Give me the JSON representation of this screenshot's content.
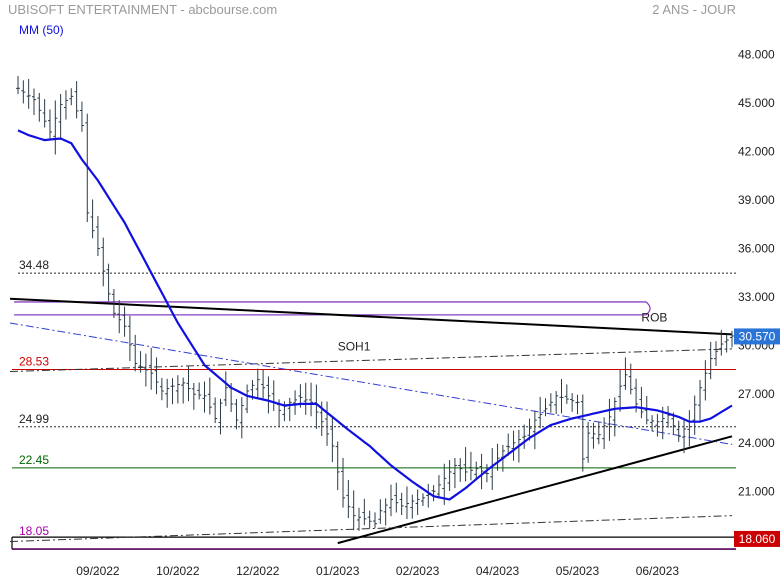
{
  "header": {
    "title": "UBISOFT ENTERTAINMENT - abcbourse.com",
    "period": "2 ANS - JOUR",
    "indicator": "MM (50)"
  },
  "colors": {
    "price_bars": "#2a3b48",
    "ma": "#1010e0",
    "resistance": "#000000",
    "level_red": "#d00000",
    "level_green": "#006600",
    "level_magenta": "#aa00aa",
    "rob": "#8a40c0",
    "trend_dashed": "#3040d0",
    "last_price_bg": "#2a74d8",
    "low_price_bg": "#cc0000"
  },
  "chart_data": {
    "type": "ohlc",
    "ylim": [
      17.5,
      49.5
    ],
    "y_ticks": [
      "48.000",
      "45.000",
      "42.000",
      "39.000",
      "36.000",
      "33.000",
      "30.000",
      "27.000",
      "24.000",
      "21.000"
    ],
    "y_tick_values": [
      48,
      45,
      42,
      39,
      36,
      33,
      30,
      27,
      24,
      21
    ],
    "x_ticks": [
      "09/2022",
      "10/2022",
      "12/2022",
      "01/2023",
      "02/2023",
      "04/2023",
      "05/2023",
      "06/2023"
    ],
    "x_tick_index": [
      15,
      30,
      45,
      60,
      75,
      90,
      105,
      120
    ],
    "n_bars": 135,
    "close_anchors": [
      [
        0,
        45.9
      ],
      [
        3,
        45.2
      ],
      [
        6,
        43.2
      ],
      [
        8,
        44.9
      ],
      [
        10,
        45.4
      ],
      [
        12,
        43.6
      ],
      [
        13,
        38.2
      ],
      [
        15,
        36.0
      ],
      [
        17,
        33.2
      ],
      [
        18,
        32.0
      ],
      [
        20,
        31.2
      ],
      [
        22,
        28.9
      ],
      [
        25,
        28.3
      ],
      [
        27,
        27.2
      ],
      [
        29,
        27.5
      ],
      [
        31,
        27.7
      ],
      [
        33,
        27.0
      ],
      [
        35,
        26.9
      ],
      [
        37,
        25.5
      ],
      [
        39,
        27.4
      ],
      [
        41,
        25.4
      ],
      [
        43,
        27.2
      ],
      [
        45,
        27.9
      ],
      [
        47,
        26.9
      ],
      [
        49,
        26.0
      ],
      [
        51,
        26.5
      ],
      [
        53,
        26.8
      ],
      [
        55,
        26.5
      ],
      [
        57,
        25.3
      ],
      [
        59,
        23.8
      ],
      [
        61,
        20.6
      ],
      [
        63,
        19.5
      ],
      [
        65,
        19.3
      ],
      [
        67,
        19.0
      ],
      [
        68,
        19.8
      ],
      [
        70,
        20.5
      ],
      [
        72,
        20.1
      ],
      [
        74,
        20.4
      ],
      [
        76,
        20.6
      ],
      [
        78,
        21.0
      ],
      [
        80,
        21.8
      ],
      [
        82,
        22.6
      ],
      [
        84,
        22.2
      ],
      [
        86,
        22.4
      ],
      [
        88,
        22.1
      ],
      [
        89,
        22.6
      ],
      [
        91,
        23.5
      ],
      [
        93,
        24.0
      ],
      [
        95,
        24.4
      ],
      [
        97,
        25.4
      ],
      [
        99,
        26.1
      ],
      [
        101,
        26.9
      ],
      [
        103,
        26.7
      ],
      [
        105,
        26.5
      ],
      [
        106,
        23.0
      ],
      [
        107,
        24.6
      ],
      [
        109,
        24.5
      ],
      [
        111,
        25.6
      ],
      [
        113,
        27.5
      ],
      [
        114,
        28.2
      ],
      [
        116,
        26.4
      ],
      [
        118,
        25.4
      ],
      [
        120,
        25.3
      ],
      [
        122,
        25.7
      ],
      [
        124,
        24.4
      ],
      [
        126,
        25.3
      ],
      [
        128,
        27.4
      ],
      [
        130,
        29.2
      ],
      [
        132,
        30.1
      ],
      [
        134,
        30.6
      ]
    ],
    "ma50_anchors": [
      [
        0,
        43.3
      ],
      [
        2,
        43.0
      ],
      [
        5,
        42.7
      ],
      [
        8,
        42.8
      ],
      [
        10,
        42.5
      ],
      [
        12,
        41.5
      ],
      [
        15,
        40.2
      ],
      [
        20,
        37.6
      ],
      [
        25,
        34.5
      ],
      [
        30,
        31.4
      ],
      [
        35,
        28.8
      ],
      [
        40,
        27.4
      ],
      [
        43,
        26.9
      ],
      [
        47,
        26.6
      ],
      [
        50,
        26.3
      ],
      [
        53,
        26.4
      ],
      [
        56,
        26.4
      ],
      [
        59,
        25.6
      ],
      [
        62,
        24.8
      ],
      [
        66,
        23.8
      ],
      [
        70,
        22.6
      ],
      [
        74,
        21.6
      ],
      [
        78,
        20.7
      ],
      [
        81,
        20.5
      ],
      [
        84,
        21.2
      ],
      [
        88,
        22.3
      ],
      [
        92,
        23.3
      ],
      [
        96,
        24.3
      ],
      [
        100,
        25.1
      ],
      [
        104,
        25.5
      ],
      [
        108,
        25.8
      ],
      [
        112,
        26.1
      ],
      [
        116,
        26.2
      ],
      [
        120,
        26.0
      ],
      [
        124,
        25.6
      ],
      [
        126,
        25.3
      ],
      [
        128,
        25.3
      ],
      [
        130,
        25.5
      ],
      [
        132,
        25.9
      ],
      [
        134,
        26.3
      ]
    ],
    "levels": [
      {
        "label": "34.48",
        "value": 34.48,
        "style": "dotted",
        "color": "#222222"
      },
      {
        "label": "28.53",
        "value": 28.53,
        "style": "solid",
        "color": "#d00000"
      },
      {
        "label": "24.99",
        "value": 24.99,
        "style": "dotted",
        "color": "#222222"
      },
      {
        "label": "22.45",
        "value": 22.45,
        "style": "solid",
        "color": "#006600"
      },
      {
        "label": "18.05",
        "value": 18.05,
        "style": "double",
        "color": "#aa00aa"
      }
    ],
    "trendlines": [
      {
        "name": "resistance",
        "x": [
          0,
          134
        ],
        "y": [
          32.9,
          30.7
        ],
        "style": "solid",
        "color": "#000000",
        "width": 2
      },
      {
        "name": "support",
        "x": [
          60,
          134
        ],
        "y": [
          17.8,
          24.4
        ],
        "style": "solid",
        "color": "#000000",
        "width": 2
      },
      {
        "name": "soh1",
        "x": [
          0,
          134
        ],
        "y": [
          28.4,
          29.8
        ],
        "style": "dashdot",
        "color": "#333333",
        "width": 1
      },
      {
        "name": "declining",
        "x": [
          0,
          134
        ],
        "y": [
          31.4,
          23.9
        ],
        "style": "dashdot",
        "color": "#3040d0",
        "width": 1
      },
      {
        "name": "lower",
        "x": [
          0,
          134
        ],
        "y": [
          17.9,
          19.5
        ],
        "style": "dashdot",
        "color": "#333333",
        "width": 1
      }
    ],
    "annotations": [
      {
        "name": "soh1",
        "text": "SOH1",
        "x": 60,
        "y": 29.7
      },
      {
        "name": "rob",
        "text": "ROB",
        "x": 117,
        "y": 31.5
      }
    ],
    "rob_ellipse": {
      "x": [
        0,
        119
      ],
      "y": [
        31.9,
        32.7
      ]
    },
    "last_price": "30.570",
    "last_price_value": 30.57,
    "low_price": "18.060",
    "low_price_value": 18.06
  }
}
